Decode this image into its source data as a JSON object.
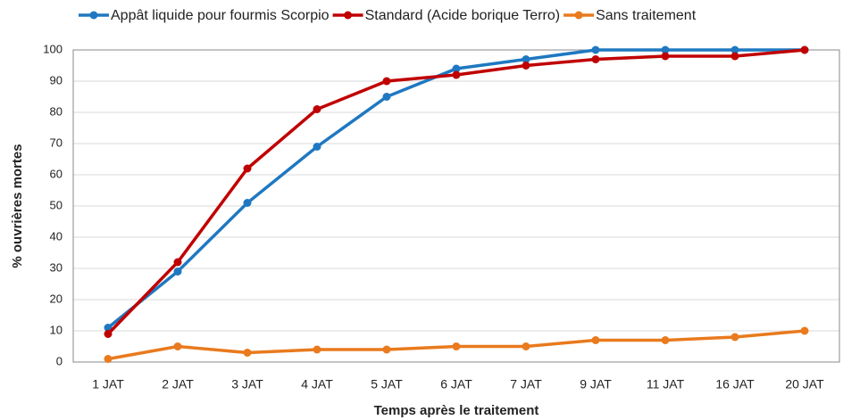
{
  "chart_data": {
    "type": "line",
    "xlabel": "Temps après le traitement",
    "ylabel": "% ouvrières mortes",
    "categories": [
      "1 JAT",
      "2 JAT",
      "3 JAT",
      "4 JAT",
      "5 JAT",
      "6 JAT",
      "7 JAT",
      "9 JAT",
      "11 JAT",
      "16 JAT",
      "20 JAT"
    ],
    "series": [
      {
        "name": "Appât liquide pour fourmis Scorpio",
        "color": "#1f78c1",
        "values": [
          11,
          29,
          51,
          69,
          85,
          94,
          97,
          100,
          100,
          100,
          100
        ]
      },
      {
        "name": "Standard (Acide borique Terro)",
        "color": "#c00000",
        "values": [
          9,
          32,
          62,
          81,
          90,
          92,
          95,
          97,
          98,
          98,
          100
        ]
      },
      {
        "name": "Sans traitement",
        "color": "#e97a1d",
        "values": [
          1,
          5,
          3,
          4,
          4,
          5,
          5,
          7,
          7,
          8,
          10
        ]
      }
    ],
    "ylim": [
      0,
      100
    ],
    "yticks": [
      0,
      10,
      20,
      30,
      40,
      50,
      60,
      70,
      80,
      90,
      100
    ],
    "grid": true,
    "legend": "top"
  }
}
